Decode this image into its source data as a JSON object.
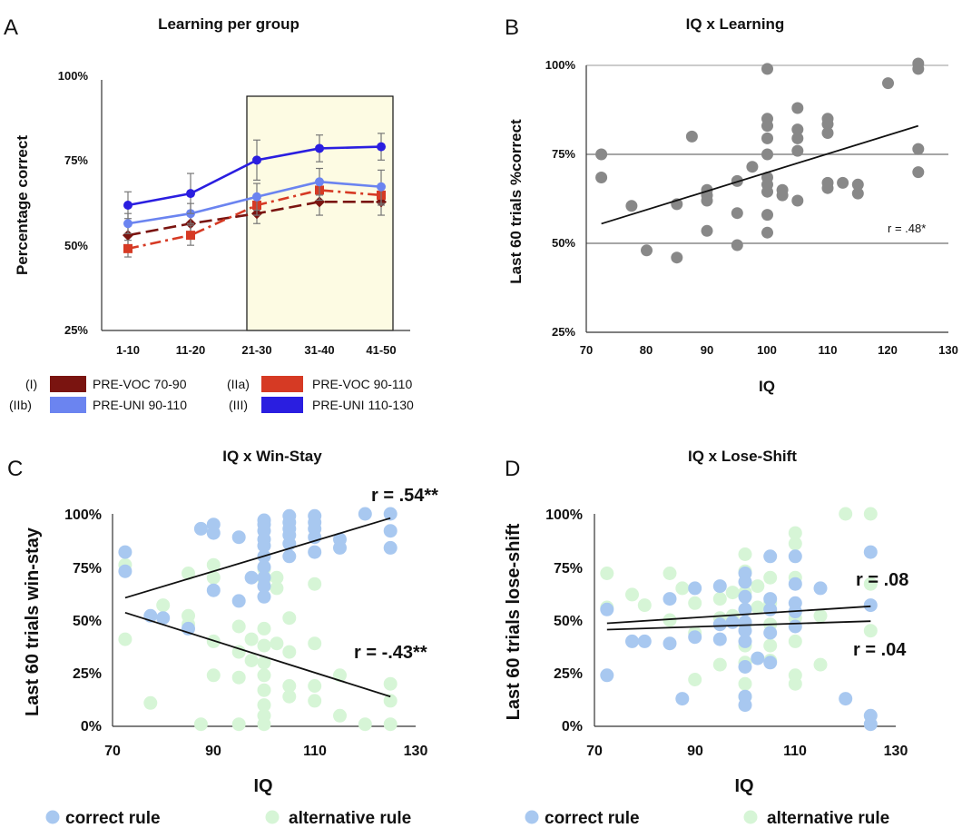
{
  "chart_data": [
    {
      "panel": "A",
      "type": "line",
      "title": "Learning per group",
      "ylabel": "Percentage correct",
      "xlabel": "",
      "categories": [
        "1-10",
        "11-20",
        "21-30",
        "31-40",
        "41-50"
      ],
      "ylim": [
        25,
        100
      ],
      "yticks": [
        "25%",
        "50%",
        "75%",
        "100%"
      ],
      "highlight_categories": [
        "21-30",
        "41-50"
      ],
      "series": [
        {
          "name": "PRE-VOC 70-90",
          "tag": "(I)",
          "color": "#7a1410",
          "marker": "diamond",
          "dash": "long",
          "values": [
            53.5,
            57,
            60,
            63.5,
            63.5
          ],
          "err": [
            3,
            3,
            3,
            4,
            4
          ]
        },
        {
          "name": "PRE-VOC 90-110",
          "tag": "(IIa)",
          "color": "#d63a24",
          "marker": "square",
          "dash": "dashdot",
          "values": [
            49.5,
            53.5,
            62.5,
            67,
            65.5
          ],
          "err": [
            2.5,
            3,
            3,
            3,
            3
          ]
        },
        {
          "name": "PRE-UNI 90-110",
          "tag": "(IIb)",
          "color": "#6b84f0",
          "marker": "circle",
          "dash": "solid",
          "values": [
            57,
            60,
            65,
            69.5,
            68
          ],
          "err": [
            3,
            3,
            4,
            4,
            5
          ]
        },
        {
          "name": "PRE-UNI 110-130",
          "tag": "(III)",
          "color": "#2a1ee0",
          "marker": "circle",
          "dash": "solid",
          "values": [
            62.5,
            66,
            76,
            79.5,
            80
          ],
          "err": [
            4,
            6,
            6,
            4,
            4
          ]
        }
      ],
      "legend_placement": "bottom"
    },
    {
      "panel": "B",
      "type": "scatter",
      "title": "IQ x Learning",
      "xlabel": "IQ",
      "ylabel": "Last 60 trials  %correct",
      "xlim": [
        70,
        130
      ],
      "ylim": [
        25,
        100
      ],
      "xticks": [
        "70",
        "80",
        "90",
        "100",
        "110",
        "120",
        "130"
      ],
      "yticks": [
        "25%",
        "50%",
        "75%",
        "100%"
      ],
      "grid": true,
      "annotation": "r = .48*",
      "series": [
        {
          "color": "#888888",
          "points": [
            [
              72.5,
              75
            ],
            [
              72.5,
              68.5
            ],
            [
              77.5,
              60.5
            ],
            [
              80,
              48
            ],
            [
              85,
              61
            ],
            [
              85,
              46
            ],
            [
              87.5,
              80
            ],
            [
              90,
              65
            ],
            [
              90,
              63.5
            ],
            [
              90,
              62
            ],
            [
              90,
              53.5
            ],
            [
              95,
              67.5
            ],
            [
              95,
              58.5
            ],
            [
              95,
              49.5
            ],
            [
              97.5,
              71.5
            ],
            [
              100,
              99
            ],
            [
              100,
              85
            ],
            [
              100,
              83
            ],
            [
              100,
              79.5
            ],
            [
              100,
              75
            ],
            [
              100,
              68.5
            ],
            [
              100,
              66.5
            ],
            [
              100,
              64.5
            ],
            [
              100,
              58
            ],
            [
              100,
              53
            ],
            [
              102.5,
              63.5
            ],
            [
              102.5,
              65
            ],
            [
              105,
              88
            ],
            [
              105,
              82
            ],
            [
              105,
              79.5
            ],
            [
              105,
              76
            ],
            [
              105,
              62
            ],
            [
              110,
              85
            ],
            [
              110,
              83.5
            ],
            [
              110,
              81
            ],
            [
              110,
              67
            ],
            [
              110,
              65.5
            ],
            [
              112.5,
              67
            ],
            [
              115,
              66.5
            ],
            [
              115,
              64
            ],
            [
              120,
              95
            ],
            [
              125,
              100.5
            ],
            [
              125,
              99
            ],
            [
              125,
              76.5
            ],
            [
              125,
              70
            ]
          ]
        }
      ],
      "trend_lines": [
        {
          "x": [
            72.5,
            125
          ],
          "y": [
            55.5,
            83
          ]
        }
      ]
    },
    {
      "panel": "C",
      "type": "scatter",
      "title": "IQ x Win-Stay",
      "xlabel": "IQ",
      "ylabel": "Last 60 trials win-stay",
      "xlim": [
        70,
        130
      ],
      "ylim": [
        0,
        100
      ],
      "xticks": [
        "70",
        "90",
        "110",
        "130"
      ],
      "yticks": [
        "0%",
        "25%",
        "50%",
        "75%",
        "100%"
      ],
      "annotations": [
        "r = .54**",
        "r = -.43**"
      ],
      "series": [
        {
          "name": "correct rule",
          "color": "#a8c8f0",
          "points": [
            [
              72.5,
              82
            ],
            [
              72.5,
              73
            ],
            [
              77.5,
              52
            ],
            [
              80,
              51
            ],
            [
              85,
              46
            ],
            [
              87.5,
              93
            ],
            [
              90,
              95
            ],
            [
              90,
              91
            ],
            [
              90,
              64
            ],
            [
              95,
              89
            ],
            [
              95,
              59
            ],
            [
              97.5,
              70
            ],
            [
              100,
              97
            ],
            [
              100,
              95
            ],
            [
              100,
              92
            ],
            [
              100,
              88
            ],
            [
              100,
              85
            ],
            [
              100,
              80
            ],
            [
              100,
              75
            ],
            [
              100,
              70
            ],
            [
              100,
              66
            ],
            [
              100,
              61
            ],
            [
              105,
              99
            ],
            [
              105,
              96
            ],
            [
              105,
              93
            ],
            [
              105,
              90
            ],
            [
              105,
              86
            ],
            [
              105,
              80
            ],
            [
              110,
              99
            ],
            [
              110,
              96
            ],
            [
              110,
              93
            ],
            [
              110,
              89
            ],
            [
              110,
              82
            ],
            [
              115,
              88
            ],
            [
              115,
              84
            ],
            [
              120,
              100
            ],
            [
              125,
              100
            ],
            [
              125,
              92
            ],
            [
              125,
              84
            ]
          ]
        },
        {
          "name": "alternative rule",
          "color": "#d6f5d6",
          "points": [
            [
              72.5,
              76
            ],
            [
              72.5,
              41
            ],
            [
              77.5,
              11
            ],
            [
              80,
              57
            ],
            [
              85,
              72
            ],
            [
              85,
              52
            ],
            [
              85,
              48
            ],
            [
              87.5,
              1
            ],
            [
              90,
              76
            ],
            [
              90,
              70
            ],
            [
              90,
              40
            ],
            [
              90,
              24
            ],
            [
              95,
              47
            ],
            [
              95,
              35
            ],
            [
              95,
              23
            ],
            [
              95,
              1
            ],
            [
              97.5,
              41
            ],
            [
              97.5,
              31
            ],
            [
              100,
              74
            ],
            [
              100,
              69
            ],
            [
              100,
              46
            ],
            [
              100,
              38
            ],
            [
              100,
              30
            ],
            [
              100,
              24
            ],
            [
              100,
              17
            ],
            [
              100,
              10
            ],
            [
              100,
              5
            ],
            [
              100,
              1
            ],
            [
              102.5,
              70
            ],
            [
              102.5,
              65
            ],
            [
              102.5,
              39
            ],
            [
              105,
              51
            ],
            [
              105,
              35
            ],
            [
              105,
              19
            ],
            [
              105,
              14
            ],
            [
              110,
              67
            ],
            [
              110,
              39
            ],
            [
              110,
              19
            ],
            [
              110,
              12
            ],
            [
              115,
              24
            ],
            [
              115,
              5
            ],
            [
              120,
              1
            ],
            [
              125,
              20
            ],
            [
              125,
              12
            ],
            [
              125,
              1
            ]
          ]
        }
      ],
      "trend_lines": [
        {
          "x": [
            72.5,
            125
          ],
          "y": [
            60.5,
            98
          ]
        },
        {
          "x": [
            72.5,
            125
          ],
          "y": [
            53.5,
            14
          ]
        }
      ],
      "legend_placement": "bottom"
    },
    {
      "panel": "D",
      "type": "scatter",
      "title": "IQ x Lose-Shift",
      "xlabel": "IQ",
      "ylabel": "Last 60 trials lose-shift",
      "xlim": [
        70,
        130
      ],
      "ylim": [
        0,
        100
      ],
      "xticks": [
        "70",
        "90",
        "110",
        "130"
      ],
      "yticks": [
        "0%",
        "25%",
        "50%",
        "75%",
        "100%"
      ],
      "annotations": [
        "r = .08",
        "r = .04"
      ],
      "series": [
        {
          "name": "correct rule",
          "color": "#a8c8f0",
          "points": [
            [
              72.5,
              24
            ],
            [
              72.5,
              55
            ],
            [
              77.5,
              40
            ],
            [
              80,
              40
            ],
            [
              85,
              60
            ],
            [
              85,
              39
            ],
            [
              87.5,
              13
            ],
            [
              90,
              65
            ],
            [
              90,
              42
            ],
            [
              95,
              66
            ],
            [
              95,
              48
            ],
            [
              95,
              41
            ],
            [
              97.5,
              49
            ],
            [
              100,
              72
            ],
            [
              100,
              68
            ],
            [
              100,
              61
            ],
            [
              100,
              55
            ],
            [
              100,
              49
            ],
            [
              100,
              45
            ],
            [
              100,
              40
            ],
            [
              100,
              28
            ],
            [
              100,
              14
            ],
            [
              100,
              10
            ],
            [
              102.5,
              32
            ],
            [
              105,
              80
            ],
            [
              105,
              60
            ],
            [
              105,
              55
            ],
            [
              105,
              44
            ],
            [
              105,
              30
            ],
            [
              110,
              80
            ],
            [
              110,
              67
            ],
            [
              110,
              58
            ],
            [
              110,
              54
            ],
            [
              110,
              47
            ],
            [
              115,
              65
            ],
            [
              120,
              13
            ],
            [
              125,
              82
            ],
            [
              125,
              57
            ],
            [
              125,
              5
            ],
            [
              125,
              1
            ]
          ]
        },
        {
          "name": "alternative rule",
          "color": "#d6f5d6",
          "points": [
            [
              72.5,
              72
            ],
            [
              72.5,
              56
            ],
            [
              77.5,
              62
            ],
            [
              80,
              57
            ],
            [
              85,
              72
            ],
            [
              85,
              50
            ],
            [
              87.5,
              65
            ],
            [
              90,
              58
            ],
            [
              90,
              44
            ],
            [
              90,
              22
            ],
            [
              95,
              60
            ],
            [
              95,
              51
            ],
            [
              95,
              29
            ],
            [
              97.5,
              63
            ],
            [
              97.5,
              52
            ],
            [
              100,
              81
            ],
            [
              100,
              73
            ],
            [
              100,
              63
            ],
            [
              100,
              55
            ],
            [
              100,
              48
            ],
            [
              100,
              38
            ],
            [
              100,
              30
            ],
            [
              100,
              20
            ],
            [
              100,
              14
            ],
            [
              102.5,
              66
            ],
            [
              102.5,
              56
            ],
            [
              105,
              70
            ],
            [
              105,
              58
            ],
            [
              105,
              48
            ],
            [
              105,
              38
            ],
            [
              105,
              31
            ],
            [
              110,
              91
            ],
            [
              110,
              86
            ],
            [
              110,
              70
            ],
            [
              110,
              51
            ],
            [
              110,
              40
            ],
            [
              110,
              24
            ],
            [
              110,
              20
            ],
            [
              115,
              52
            ],
            [
              115,
              29
            ],
            [
              120,
              100
            ],
            [
              125,
              100
            ],
            [
              125,
              67
            ],
            [
              125,
              45
            ]
          ]
        }
      ],
      "trend_lines": [
        {
          "x": [
            72.5,
            125
          ],
          "y": [
            48.5,
            56.5
          ]
        },
        {
          "x": [
            72.5,
            125
          ],
          "y": [
            45.5,
            49.5
          ]
        }
      ],
      "legend_placement": "bottom"
    }
  ]
}
